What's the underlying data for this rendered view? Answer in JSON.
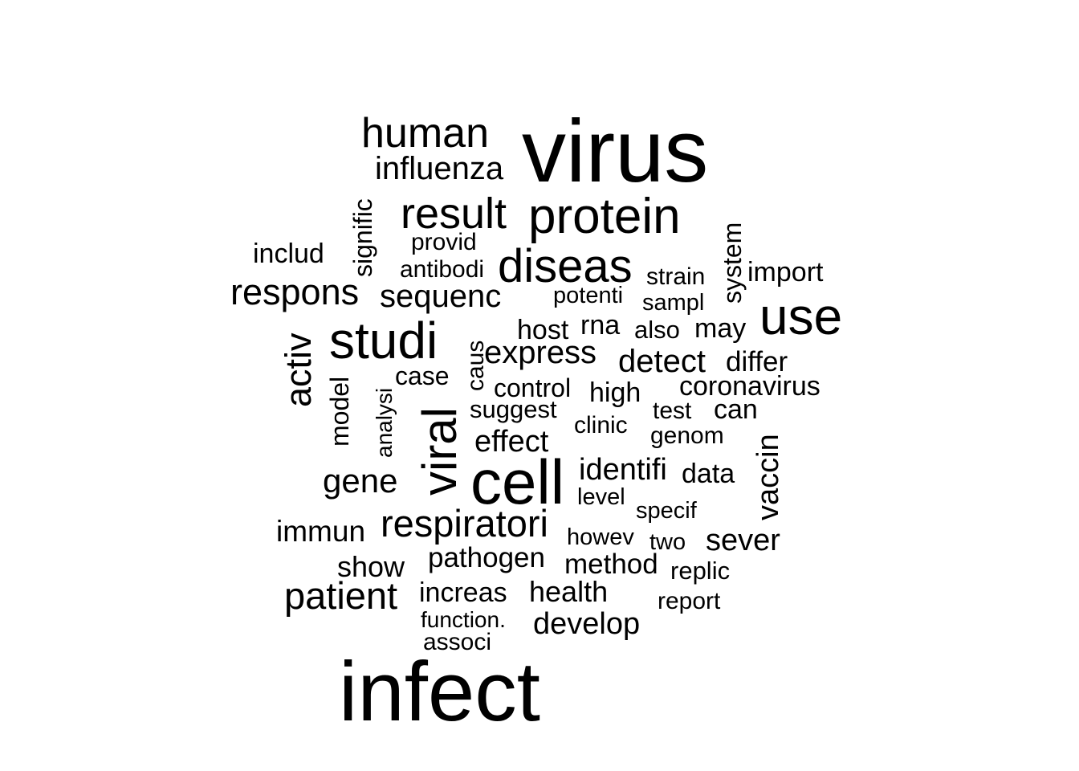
{
  "chart_data": {
    "type": "wordcloud",
    "title": "",
    "color": "#000000",
    "words": [
      {
        "text": "virus",
        "size": 110
      },
      {
        "text": "infect",
        "size": 105
      },
      {
        "text": "cell",
        "size": 78
      },
      {
        "text": "use",
        "size": 64
      },
      {
        "text": "protein",
        "size": 62
      },
      {
        "text": "studi",
        "size": 64
      },
      {
        "text": "viral",
        "size": 60
      },
      {
        "text": "diseas",
        "size": 58
      },
      {
        "text": "result",
        "size": 54
      },
      {
        "text": "human",
        "size": 52
      },
      {
        "text": "respiratori",
        "size": 47
      },
      {
        "text": "patient",
        "size": 47
      },
      {
        "text": "respons",
        "size": 45
      },
      {
        "text": "activ",
        "size": 45
      },
      {
        "text": "gene",
        "size": 42
      },
      {
        "text": "influenza",
        "size": 40
      },
      {
        "text": "sequenc",
        "size": 40
      },
      {
        "text": "express",
        "size": 40
      },
      {
        "text": "detect",
        "size": 40
      },
      {
        "text": "effect",
        "size": 38
      },
      {
        "text": "develop",
        "size": 38
      },
      {
        "text": "identifi",
        "size": 38
      },
      {
        "text": "sever",
        "size": 38
      },
      {
        "text": "vaccin",
        "size": 38
      },
      {
        "text": "immun",
        "size": 37
      },
      {
        "text": "health",
        "size": 36
      },
      {
        "text": "show",
        "size": 36
      },
      {
        "text": "pathogen",
        "size": 35
      },
      {
        "text": "method",
        "size": 35
      },
      {
        "text": "increas",
        "size": 34
      },
      {
        "text": "includ",
        "size": 34
      },
      {
        "text": "import",
        "size": 34
      },
      {
        "text": "differ",
        "size": 35
      },
      {
        "text": "high",
        "size": 34
      },
      {
        "text": "rna",
        "size": 34
      },
      {
        "text": "host",
        "size": 34
      },
      {
        "text": "data",
        "size": 34
      },
      {
        "text": "may",
        "size": 34
      },
      {
        "text": "system",
        "size": 32
      },
      {
        "text": "signific",
        "size": 32
      },
      {
        "text": "case",
        "size": 32
      },
      {
        "text": "control",
        "size": 32
      },
      {
        "text": "coronavirus",
        "size": 34
      },
      {
        "text": "can",
        "size": 34
      },
      {
        "text": "model",
        "size": 32
      },
      {
        "text": "also",
        "size": 31
      },
      {
        "text": "suggest",
        "size": 31
      },
      {
        "text": "replic",
        "size": 31
      },
      {
        "text": "caus",
        "size": 30
      },
      {
        "text": "provid",
        "size": 30
      },
      {
        "text": "antibodi",
        "size": 30
      },
      {
        "text": "strain",
        "size": 30
      },
      {
        "text": "test",
        "size": 30
      },
      {
        "text": "clinic",
        "size": 30
      },
      {
        "text": "report",
        "size": 30
      },
      {
        "text": "associ",
        "size": 30
      },
      {
        "text": "genom",
        "size": 30
      },
      {
        "text": "howev",
        "size": 29
      },
      {
        "text": "two",
        "size": 29
      },
      {
        "text": "specif",
        "size": 29
      },
      {
        "text": "potenti",
        "size": 29
      },
      {
        "text": "sampl",
        "size": 29
      },
      {
        "text": "level",
        "size": 29
      },
      {
        "text": "analysi",
        "size": 28
      },
      {
        "text": "function.",
        "size": 28
      }
    ]
  }
}
